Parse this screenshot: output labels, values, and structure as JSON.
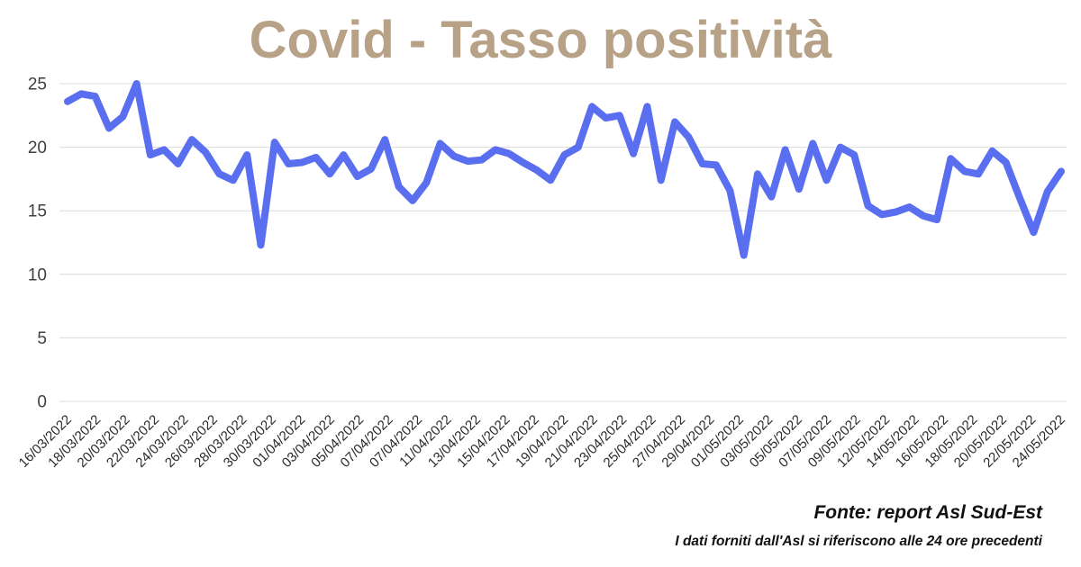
{
  "title": "Covid - Tasso positività",
  "footer": {
    "source": "Fonte: report Asl Sud-Est",
    "disclaimer": "I dati forniti dall'Asl si riferiscono alle 24 ore precedenti"
  },
  "colors": {
    "background": "#ffffff",
    "title": "#b8a287",
    "line": "#5a6ef0",
    "grid": "#dcdcdc",
    "y_tick_text": "#3f3f3f",
    "x_tick_text": "#2a2a2a",
    "footer_text": "#111111"
  },
  "chart_data": {
    "type": "line",
    "title": "Covid - Tasso positività",
    "xlabel": "",
    "ylabel": "",
    "ylim": [
      0,
      25
    ],
    "y_ticks": [
      0,
      5,
      10,
      15,
      20,
      25
    ],
    "grid": true,
    "legend": false,
    "x_tick_labels": [
      "16/03/2022",
      "18/03/2022",
      "20/03/2022",
      "22/03/2022",
      "24/03/2022",
      "26/03/2022",
      "28/03/2022",
      "30/03/2022",
      "01/04/2022",
      "03/04/2022",
      "05/04/2022",
      "07/04/2022",
      "07/04/2022",
      "11/04/2022",
      "13/04/2022",
      "15/04/2022",
      "17/04/2022",
      "19/04/2022",
      "21/04/2022",
      "23/04/2022",
      "25/04/2022",
      "27/04/2022",
      "29/04/2022",
      "01/05/2022",
      "03/05/2022",
      "05/05/2022",
      "07/05/2022",
      "09/05/2022",
      "12/05/2022",
      "14/05/2022",
      "16/05/2022",
      "18/05/2022",
      "20/05/2022",
      "22/05/2022",
      "24/05/2022"
    ],
    "series": [
      {
        "name": "Tasso positività",
        "values": [
          23.6,
          24.2,
          24.0,
          21.5,
          22.4,
          25.0,
          19.4,
          19.8,
          18.7,
          20.6,
          19.6,
          17.9,
          17.4,
          19.4,
          12.3,
          20.4,
          18.7,
          18.8,
          19.2,
          17.9,
          19.4,
          17.7,
          18.3,
          20.6,
          16.9,
          15.8,
          17.2,
          20.3,
          19.3,
          18.9,
          19.0,
          19.8,
          19.5,
          18.8,
          18.2,
          17.4,
          19.4,
          20.0,
          23.2,
          22.3,
          22.5,
          19.5,
          23.2,
          17.4,
          22.0,
          20.8,
          18.7,
          18.6,
          16.6,
          11.5,
          17.9,
          16.1,
          19.8,
          16.7,
          20.3,
          17.4,
          20.0,
          19.4,
          15.4,
          14.7,
          14.9,
          15.3,
          14.6,
          14.3,
          19.1,
          18.1,
          17.9,
          19.7,
          18.8,
          16.0,
          13.3,
          16.5,
          18.1
        ]
      }
    ]
  }
}
